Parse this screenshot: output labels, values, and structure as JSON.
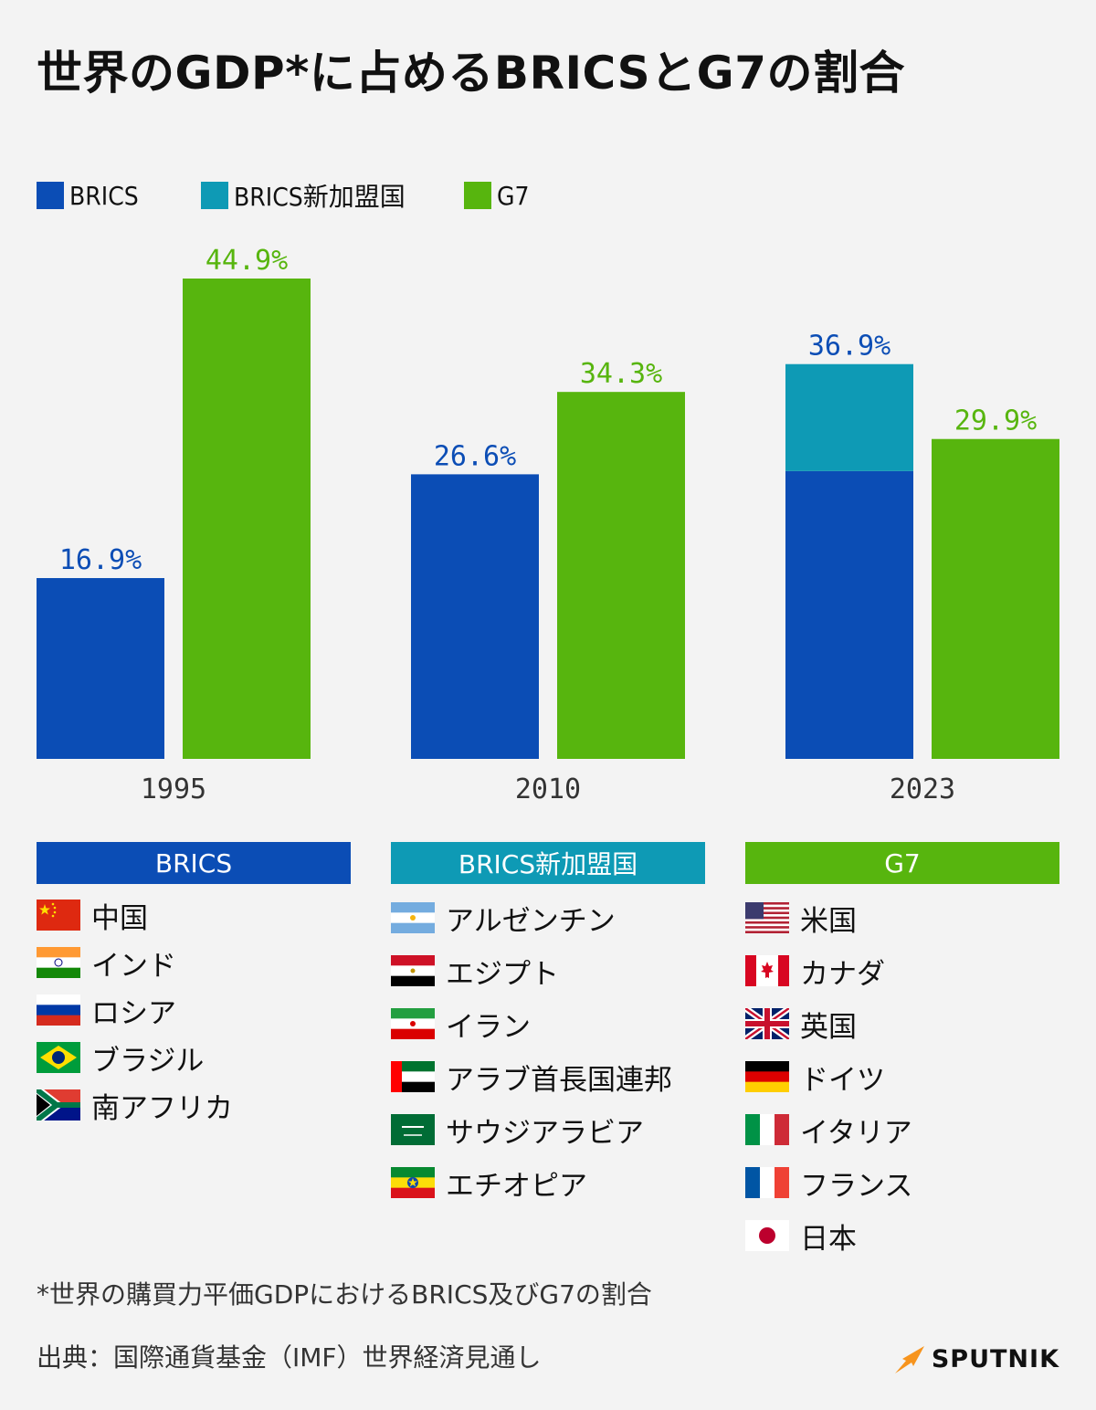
{
  "title": "世界のGDP*に占めるBRICSとG7の割合",
  "colors": {
    "brics": "#0b4db5",
    "new_members": "#0e9ab5",
    "g7": "#57b50e",
    "background": "#f3f3f3"
  },
  "legend": [
    {
      "label": "BRICS",
      "color": "#0b4db5"
    },
    {
      "label": "BRICS新加盟国",
      "color": "#0e9ab5"
    },
    {
      "label": "G7",
      "color": "#57b50e"
    }
  ],
  "chart_data": {
    "type": "bar",
    "categories": [
      "1995",
      "2010",
      "2023"
    ],
    "series": [
      {
        "name": "BRICS",
        "values": [
          16.9,
          26.6,
          26.9
        ],
        "stack": "brics"
      },
      {
        "name": "BRICS新加盟国",
        "values": [
          0,
          0,
          10.0
        ],
        "stack": "brics"
      },
      {
        "name": "G7",
        "values": [
          44.9,
          34.3,
          29.9
        ],
        "stack": "g7"
      }
    ],
    "data_labels": {
      "brics_total": [
        "16.9%",
        "26.6%",
        "36.9%"
      ],
      "g7": [
        "44.9%",
        "34.3%",
        "29.9%"
      ]
    },
    "ylim": [
      0,
      44.9
    ],
    "grid": false,
    "legend_position": "top-left"
  },
  "groups": [
    {
      "header": "BRICS",
      "color": "#0b4db5",
      "countries": [
        {
          "name": "中国",
          "flag": "china-flag-icon"
        },
        {
          "name": "インド",
          "flag": "india-flag-icon"
        },
        {
          "name": "ロシア",
          "flag": "russia-flag-icon"
        },
        {
          "name": "ブラジル",
          "flag": "brazil-flag-icon"
        },
        {
          "name": "南アフリカ",
          "flag": "south-africa-flag-icon"
        }
      ]
    },
    {
      "header": "BRICS新加盟国",
      "color": "#0e9ab5",
      "countries": [
        {
          "name": "アルゼンチン",
          "flag": "argentina-flag-icon"
        },
        {
          "name": "エジプト",
          "flag": "egypt-flag-icon"
        },
        {
          "name": "イラン",
          "flag": "iran-flag-icon"
        },
        {
          "name": "アラブ首長国連邦",
          "flag": "uae-flag-icon"
        },
        {
          "name": "サウジアラビア",
          "flag": "saudi-arabia-flag-icon"
        },
        {
          "name": "エチオピア",
          "flag": "ethiopia-flag-icon"
        }
      ]
    },
    {
      "header": "G7",
      "color": "#57b50e",
      "countries": [
        {
          "name": "米国",
          "flag": "usa-flag-icon"
        },
        {
          "name": "カナダ",
          "flag": "canada-flag-icon"
        },
        {
          "name": "英国",
          "flag": "uk-flag-icon"
        },
        {
          "name": "ドイツ",
          "flag": "germany-flag-icon"
        },
        {
          "name": "イタリア",
          "flag": "italy-flag-icon"
        },
        {
          "name": "フランス",
          "flag": "france-flag-icon"
        },
        {
          "name": "日本",
          "flag": "japan-flag-icon"
        }
      ]
    }
  ],
  "footnote": "*世界の購買力平価GDPにおけるBRICS及びG7の割合",
  "source": "出典：国際通貨基金（IMF）世界経済見通し",
  "brand": {
    "name": "SPUTNIK",
    "icon": "sputnik-logo-icon"
  }
}
